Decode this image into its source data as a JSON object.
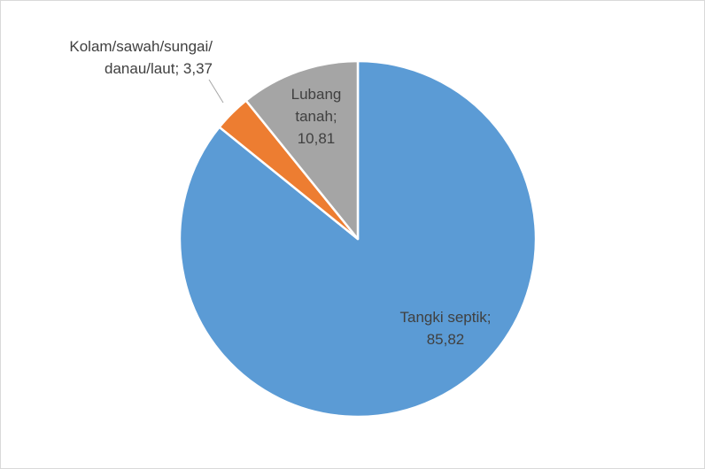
{
  "chart_data": {
    "type": "pie",
    "categories": [
      "Tangki septik",
      "Kolam/sawah/sungai/danau/laut",
      "Lubang tanah"
    ],
    "values": [
      85.82,
      3.37,
      10.81
    ],
    "value_labels": [
      "85,82",
      "3,37",
      "10,81"
    ],
    "separator": ";",
    "colors": [
      "#5b9bd5",
      "#ed7d31",
      "#a5a5a5"
    ]
  }
}
